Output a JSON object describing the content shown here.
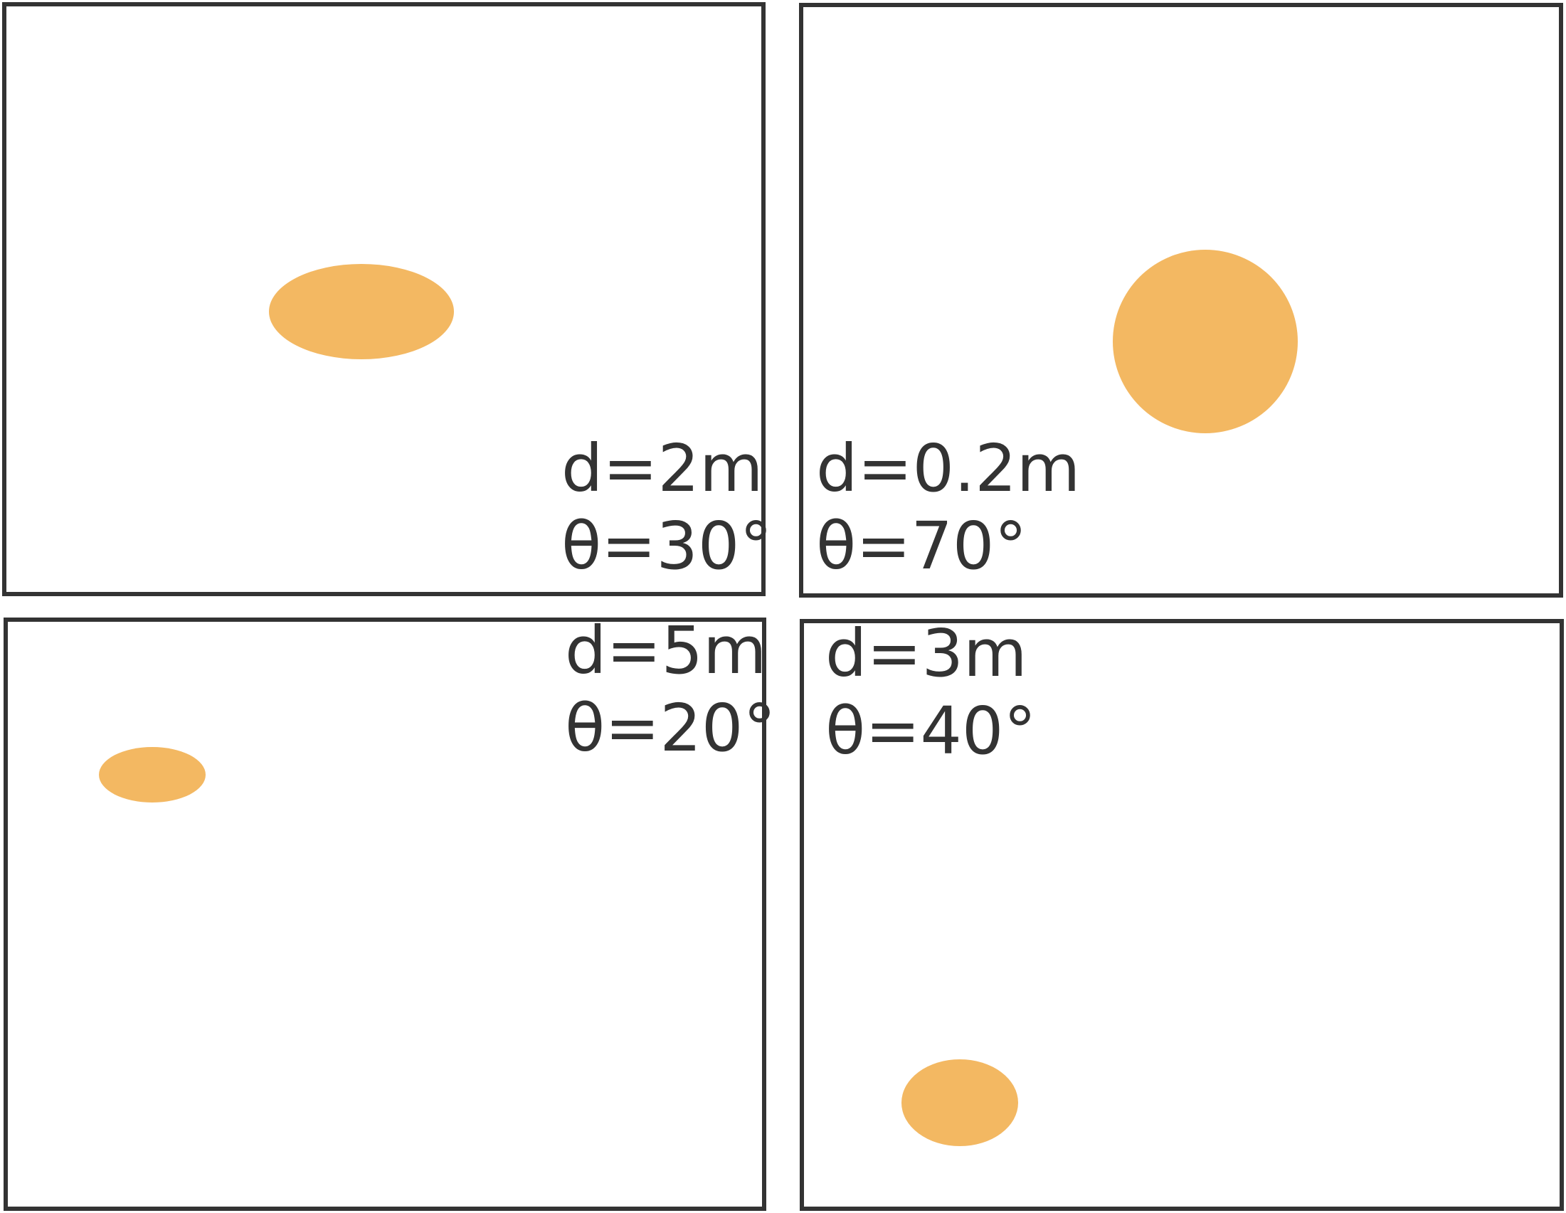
{
  "colors": {
    "frame": "#333333",
    "spot": "#f3b862",
    "background": "#ffffff"
  },
  "panels": [
    {
      "id": "top-left",
      "d_label": "d=2m",
      "theta_label": "θ=30°"
    },
    {
      "id": "top-right",
      "d_label": "d=0.2m",
      "theta_label": "θ=70°"
    },
    {
      "id": "bottom-left",
      "d_label": "d=5m",
      "theta_label": "θ=20°"
    },
    {
      "id": "bottom-right",
      "d_label": "d=3m",
      "theta_label": "θ=40°"
    }
  ]
}
